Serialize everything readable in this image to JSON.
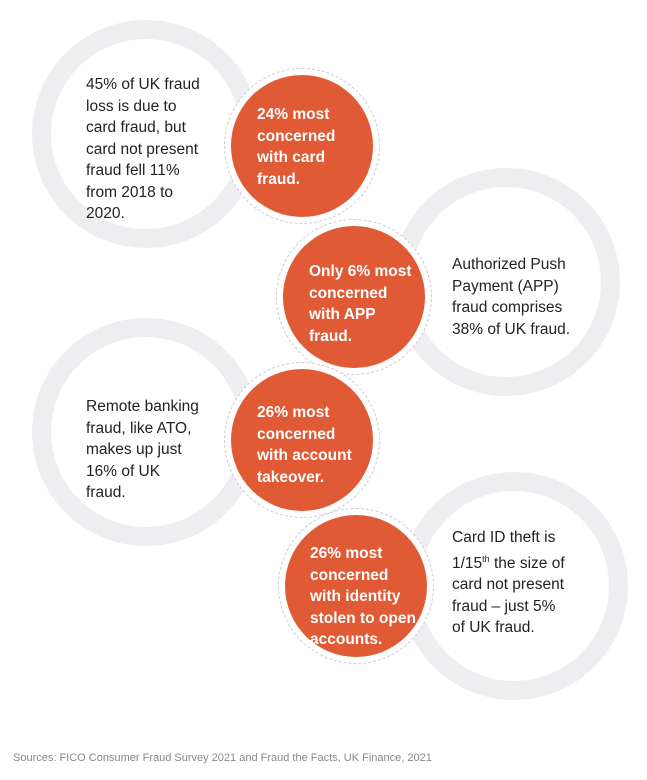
{
  "colors": {
    "accent": "#e05a35",
    "ring": "#eeeef0"
  },
  "items": [
    {
      "fact": "45% of UK fraud\nloss is due to\ncard fraud, but\ncard not present\nfraud fell 11%\nfrom 2018 to\n2020.",
      "concern": "24% most\nconcerned\nwith card\nfraud."
    },
    {
      "fact": "Authorized Push\nPayment (APP)\nfraud comprises\n38% of UK fraud.",
      "concern": "Only 6% most\nconcerned\nwith APP\nfraud."
    },
    {
      "fact": "Remote banking\nfraud, like ATO,\nmakes up just\n16% of UK\nfraud.",
      "concern": "26% most\nconcerned\nwith account\ntakeover."
    },
    {
      "fact_pre": "Card ID theft is\n1/15",
      "fact_sup": "th",
      "fact_post": " the size of\ncard not present\nfraud – just 5%\nof UK fraud.",
      "concern": "26% most\nconcerned\nwith identity\nstolen to open\naccounts."
    }
  ],
  "sources": "Sources: FICO Consumer Fraud Survey 2021 and Fraud the Facts, UK Finance, 2021"
}
